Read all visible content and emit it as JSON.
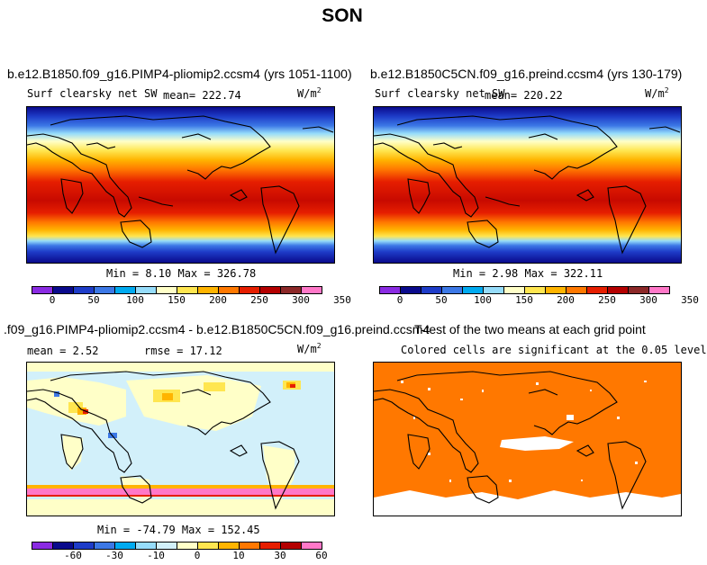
{
  "title": "SON",
  "panels": {
    "top_left": {
      "case": "b.e12.B1850.f09_g16.PIMP4-pliomip2.ccsm4 (yrs 1051-1100)",
      "variable": "Surf clearsky net SW",
      "mean_label": "mean=",
      "mean_value": "222.74",
      "units": "W/m",
      "units_exp": "2",
      "minmax": "Min =    8.10 Max = 326.78"
    },
    "top_right": {
      "case": "b.e12.B1850C5CN.f09_g16.preind.ccsm4 (yrs 130-179)",
      "variable": "Surf clearsky net SW",
      "mean_label": "mean=",
      "mean_value": "220.22",
      "units": "W/m",
      "units_exp": "2",
      "minmax": "Min =    2.98 Max = 322.11"
    },
    "bottom_left": {
      "case": ".f09_g16.PIMP4-pliomip2.ccsm4 - b.e12.B1850C5CN.f09_g16.preind.ccsm4",
      "mean_text": "mean =    2.52",
      "rmse_text": "rmse =   17.12",
      "units": "W/m",
      "units_exp": "2",
      "minmax": "Min = -74.79 Max = 152.45"
    },
    "bottom_right": {
      "title": "T-test of the two means at each grid point",
      "subtitle": "Colored cells are significant at the 0.05 level"
    }
  },
  "colorbars": {
    "abs": {
      "colors": [
        "#8a2be2",
        "#0a0a8c",
        "#1e3cc8",
        "#3c78e6",
        "#00aaf0",
        "#96dcfa",
        "#ffffc8",
        "#ffe650",
        "#ffb400",
        "#ff7800",
        "#e61e00",
        "#b40000",
        "#8c2828",
        "#ff78c8"
      ],
      "labels": [
        "0",
        "50",
        "100",
        "150",
        "200",
        "250",
        "300",
        "350"
      ]
    },
    "diff": {
      "colors": [
        "#8a2be2",
        "#0a0a8c",
        "#1e3cc8",
        "#3c78e6",
        "#00aaf0",
        "#96dcfa",
        "#d2f0fa",
        "#ffffc8",
        "#ffe650",
        "#ffb400",
        "#ff7800",
        "#e61e00",
        "#b40000",
        "#ff78c8"
      ],
      "labels": [
        "-60",
        "-30",
        "-10",
        "0",
        "10",
        "30",
        "60"
      ]
    }
  },
  "chart_data": [
    {
      "type": "heatmap",
      "title": "b.e12.B1850.f09_g16.PIMP4-pliomip2.ccsm4 (yrs 1051-1100)",
      "variable": "Surf clearsky net SW",
      "units": "W/m2",
      "mean": 222.74,
      "min": 8.1,
      "max": 326.78,
      "colorbar_levels": [
        0,
        25,
        50,
        75,
        100,
        125,
        150,
        175,
        200,
        225,
        250,
        275,
        300,
        325,
        350
      ]
    },
    {
      "type": "heatmap",
      "title": "b.e12.B1850C5CN.f09_g16.preind.ccsm4 (yrs 130-179)",
      "variable": "Surf clearsky net SW",
      "units": "W/m2",
      "mean": 220.22,
      "min": 2.98,
      "max": 322.11,
      "colorbar_levels": [
        0,
        25,
        50,
        75,
        100,
        125,
        150,
        175,
        200,
        225,
        250,
        275,
        300,
        325,
        350
      ]
    },
    {
      "type": "heatmap",
      "title": ".f09_g16.PIMP4-pliomip2.ccsm4 - b.e12.B1850C5CN.f09_g16.preind.ccsm4",
      "units": "W/m2",
      "mean": 2.52,
      "rmse": 17.12,
      "min": -74.79,
      "max": 152.45,
      "colorbar_levels": [
        -60,
        -30,
        -10,
        0,
        10,
        30,
        60
      ]
    },
    {
      "type": "heatmap",
      "title": "T-test of the two means at each grid point",
      "subtitle": "Colored cells are significant at the 0.05 level",
      "significance_level": 0.05
    }
  ]
}
